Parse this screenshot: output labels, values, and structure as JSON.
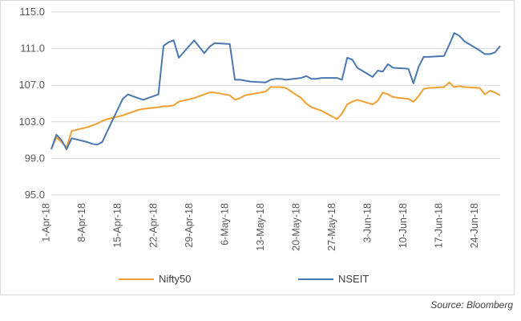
{
  "chart_data": {
    "type": "line",
    "ylim": [
      95.0,
      115.0
    ],
    "yticks": [
      "115.0",
      "111.0",
      "107.0",
      "103.0",
      "99.0",
      "95.0"
    ],
    "xlim": [
      "2018-04-02",
      "2018-06-29"
    ],
    "xticks": [
      {
        "label": "1-Apr-18",
        "date": "2018-04-01"
      },
      {
        "label": "8-Apr-18",
        "date": "2018-04-08"
      },
      {
        "label": "15-Apr-18",
        "date": "2018-04-15"
      },
      {
        "label": "22-Apr-18",
        "date": "2018-04-22"
      },
      {
        "label": "29-Apr-18",
        "date": "2018-04-29"
      },
      {
        "label": "6-May-18",
        "date": "2018-05-06"
      },
      {
        "label": "13-May-18",
        "date": "2018-05-13"
      },
      {
        "label": "20-May-18",
        "date": "2018-05-20"
      },
      {
        "label": "27-May-18",
        "date": "2018-05-27"
      },
      {
        "label": "3-Jun-18",
        "date": "2018-06-03"
      },
      {
        "label": "10-Jun-18",
        "date": "2018-06-10"
      },
      {
        "label": "17-Jun-18",
        "date": "2018-06-17"
      },
      {
        "label": "24-Jun-18",
        "date": "2018-06-24"
      }
    ],
    "grid": "horizontal",
    "legend": "bottom",
    "series": [
      {
        "name": "Nifty50",
        "color": "#f0a030",
        "points": [
          [
            "2018-04-02",
            100.0
          ],
          [
            "2018-04-03",
            101.3
          ],
          [
            "2018-04-04",
            100.8
          ],
          [
            "2018-04-05",
            100.2
          ],
          [
            "2018-04-06",
            102.0
          ],
          [
            "2018-04-09",
            102.4
          ],
          [
            "2018-04-10",
            102.6
          ],
          [
            "2018-04-11",
            102.8
          ],
          [
            "2018-04-12",
            103.1
          ],
          [
            "2018-04-13",
            103.3
          ],
          [
            "2018-04-16",
            103.7
          ],
          [
            "2018-04-17",
            103.9
          ],
          [
            "2018-04-18",
            104.1
          ],
          [
            "2018-04-19",
            104.3
          ],
          [
            "2018-04-20",
            104.4
          ],
          [
            "2018-04-23",
            104.6
          ],
          [
            "2018-04-24",
            104.7
          ],
          [
            "2018-04-25",
            104.7
          ],
          [
            "2018-04-26",
            104.8
          ],
          [
            "2018-04-27",
            105.2
          ],
          [
            "2018-04-30",
            105.6
          ],
          [
            "2018-05-02",
            106.0
          ],
          [
            "2018-05-03",
            106.2
          ],
          [
            "2018-05-04",
            106.2
          ],
          [
            "2018-05-07",
            105.9
          ],
          [
            "2018-05-08",
            105.4
          ],
          [
            "2018-05-09",
            105.6
          ],
          [
            "2018-05-10",
            105.9
          ],
          [
            "2018-05-11",
            106.0
          ],
          [
            "2018-05-14",
            106.3
          ],
          [
            "2018-05-15",
            106.8
          ],
          [
            "2018-05-16",
            106.8
          ],
          [
            "2018-05-17",
            106.8
          ],
          [
            "2018-05-18",
            106.7
          ],
          [
            "2018-05-21",
            105.6
          ],
          [
            "2018-05-22",
            105.0
          ],
          [
            "2018-05-23",
            104.6
          ],
          [
            "2018-05-24",
            104.4
          ],
          [
            "2018-05-25",
            104.2
          ],
          [
            "2018-05-28",
            103.3
          ],
          [
            "2018-05-29",
            103.9
          ],
          [
            "2018-05-30",
            104.9
          ],
          [
            "2018-05-31",
            105.2
          ],
          [
            "2018-06-01",
            105.4
          ],
          [
            "2018-06-04",
            104.9
          ],
          [
            "2018-06-05",
            105.3
          ],
          [
            "2018-06-06",
            106.2
          ],
          [
            "2018-06-07",
            106.0
          ],
          [
            "2018-06-08",
            105.7
          ],
          [
            "2018-06-11",
            105.5
          ],
          [
            "2018-06-12",
            105.2
          ],
          [
            "2018-06-13",
            105.8
          ],
          [
            "2018-06-14",
            106.6
          ],
          [
            "2018-06-15",
            106.7
          ],
          [
            "2018-06-18",
            106.8
          ],
          [
            "2018-06-19",
            107.3
          ],
          [
            "2018-06-20",
            106.8
          ],
          [
            "2018-06-21",
            106.9
          ],
          [
            "2018-06-22",
            106.8
          ],
          [
            "2018-06-25",
            106.7
          ],
          [
            "2018-06-26",
            106.0
          ],
          [
            "2018-06-27",
            106.4
          ],
          [
            "2018-06-28",
            106.2
          ],
          [
            "2018-06-29",
            105.9
          ]
        ]
      },
      {
        "name": "NSEIT",
        "color": "#4a78b0",
        "points": [
          [
            "2018-04-02",
            100.0
          ],
          [
            "2018-04-03",
            101.6
          ],
          [
            "2018-04-04",
            101.0
          ],
          [
            "2018-04-05",
            100.0
          ],
          [
            "2018-04-06",
            101.2
          ],
          [
            "2018-04-09",
            100.8
          ],
          [
            "2018-04-10",
            100.6
          ],
          [
            "2018-04-11",
            100.5
          ],
          [
            "2018-04-12",
            100.8
          ],
          [
            "2018-04-13",
            102.0
          ],
          [
            "2018-04-16",
            105.5
          ],
          [
            "2018-04-17",
            106.0
          ],
          [
            "2018-04-18",
            105.8
          ],
          [
            "2018-04-19",
            105.6
          ],
          [
            "2018-04-20",
            105.4
          ],
          [
            "2018-04-23",
            106.0
          ],
          [
            "2018-04-24",
            111.3
          ],
          [
            "2018-04-25",
            111.7
          ],
          [
            "2018-04-26",
            111.9
          ],
          [
            "2018-04-27",
            110.0
          ],
          [
            "2018-04-30",
            111.9
          ],
          [
            "2018-05-02",
            110.5
          ],
          [
            "2018-05-03",
            111.2
          ],
          [
            "2018-05-04",
            111.6
          ],
          [
            "2018-05-07",
            111.5
          ],
          [
            "2018-05-08",
            107.6
          ],
          [
            "2018-05-09",
            107.6
          ],
          [
            "2018-05-10",
            107.5
          ],
          [
            "2018-05-11",
            107.4
          ],
          [
            "2018-05-14",
            107.3
          ],
          [
            "2018-05-15",
            107.6
          ],
          [
            "2018-05-16",
            107.7
          ],
          [
            "2018-05-17",
            107.7
          ],
          [
            "2018-05-18",
            107.6
          ],
          [
            "2018-05-21",
            107.8
          ],
          [
            "2018-05-22",
            108.0
          ],
          [
            "2018-05-23",
            107.7
          ],
          [
            "2018-05-24",
            107.7
          ],
          [
            "2018-05-25",
            107.8
          ],
          [
            "2018-05-28",
            107.8
          ],
          [
            "2018-05-29",
            107.6
          ],
          [
            "2018-05-30",
            110.0
          ],
          [
            "2018-05-31",
            109.8
          ],
          [
            "2018-06-01",
            108.9
          ],
          [
            "2018-06-04",
            107.9
          ],
          [
            "2018-06-05",
            108.6
          ],
          [
            "2018-06-06",
            108.5
          ],
          [
            "2018-06-07",
            109.3
          ],
          [
            "2018-06-08",
            108.9
          ],
          [
            "2018-06-11",
            108.8
          ],
          [
            "2018-06-12",
            107.2
          ],
          [
            "2018-06-13",
            109.0
          ],
          [
            "2018-06-14",
            110.1
          ],
          [
            "2018-06-15",
            110.1
          ],
          [
            "2018-06-18",
            110.2
          ],
          [
            "2018-06-19",
            111.4
          ],
          [
            "2018-06-20",
            112.7
          ],
          [
            "2018-06-21",
            112.4
          ],
          [
            "2018-06-22",
            111.8
          ],
          [
            "2018-06-25",
            110.8
          ],
          [
            "2018-06-26",
            110.4
          ],
          [
            "2018-06-27",
            110.4
          ],
          [
            "2018-06-28",
            110.6
          ],
          [
            "2018-06-29",
            111.3
          ]
        ]
      }
    ]
  },
  "legend": {
    "nifty_label": "Nifty50",
    "nseit_label": "NSEIT"
  },
  "source": "Source: Bloomberg"
}
